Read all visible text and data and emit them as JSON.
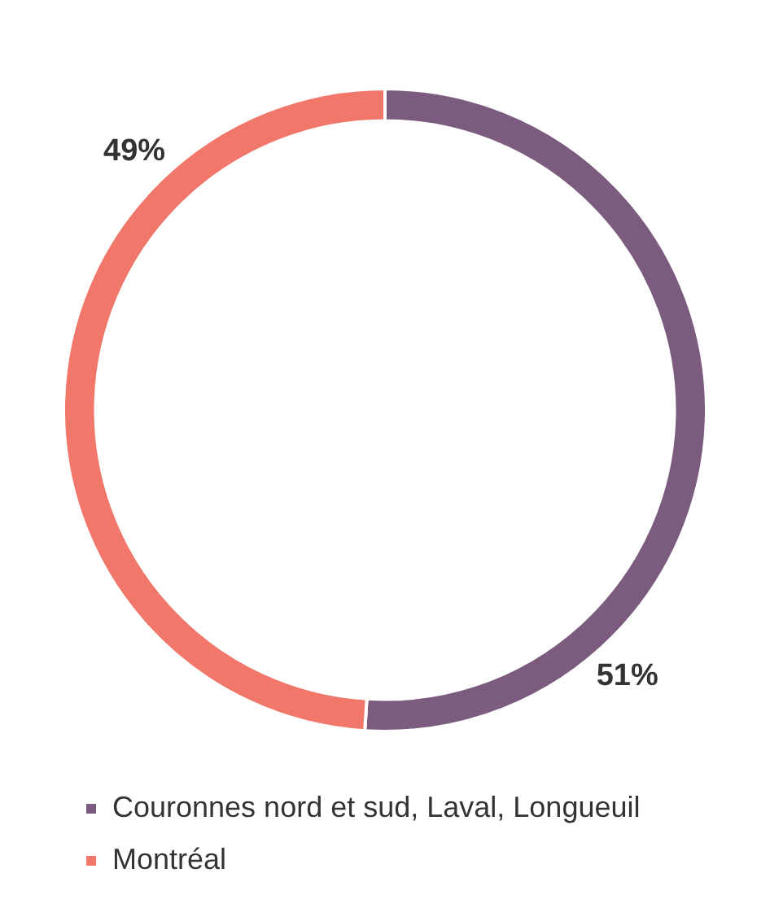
{
  "chart_data": {
    "type": "donut",
    "categories": [
      "Couronnes nord et sud, Laval, Longueuil",
      "Montréal"
    ],
    "values": [
      51,
      49
    ],
    "colors": [
      "#7b5b7e",
      "#f0776a"
    ],
    "value_labels": [
      "51%",
      "49%"
    ],
    "legend": "bottom"
  }
}
